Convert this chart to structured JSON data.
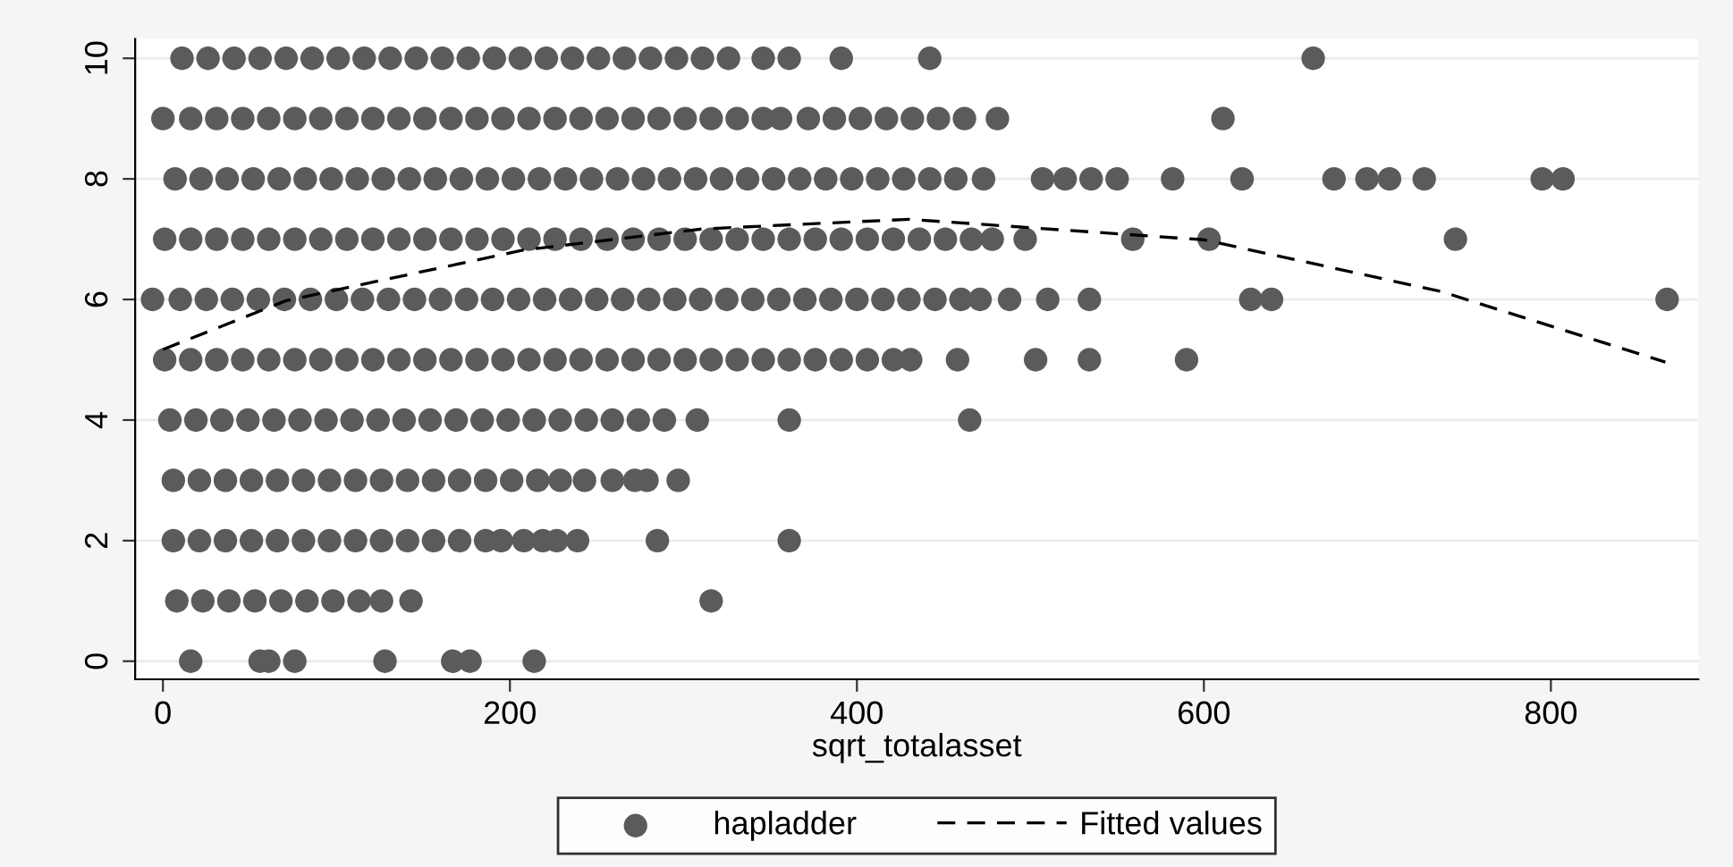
{
  "chart_data": {
    "type": "scatter",
    "xlabel": "sqrt_totalasset",
    "xlim": [
      -16,
      885
    ],
    "ylim": [
      -0.3,
      10.32
    ],
    "xticks": [
      0,
      200,
      400,
      600,
      800
    ],
    "yticks": [
      0,
      2,
      4,
      6,
      8,
      10
    ],
    "grid": "y",
    "legend": "bottom",
    "series": [
      {
        "name": "hapladder",
        "marker": "circle",
        "color": "#5b5b5b",
        "x": [
          11,
          26,
          41,
          56,
          71,
          86,
          101,
          116,
          131,
          146,
          161,
          176,
          191,
          206,
          221,
          236,
          251,
          266,
          281,
          296,
          311,
          326,
          346,
          361,
          391,
          442,
          663,
          0,
          16,
          31,
          46,
          61,
          76,
          91,
          106,
          121,
          136,
          151,
          166,
          181,
          196,
          211,
          226,
          241,
          256,
          271,
          286,
          301,
          316,
          331,
          346,
          356,
          372,
          387,
          402,
          417,
          432,
          447,
          462,
          481,
          611,
          7,
          22,
          37,
          52,
          67,
          82,
          97,
          112,
          127,
          142,
          157,
          172,
          187,
          202,
          217,
          232,
          247,
          262,
          277,
          292,
          307,
          322,
          337,
          352,
          367,
          382,
          397,
          412,
          427,
          442,
          457,
          473,
          507,
          520,
          535,
          550,
          582,
          622,
          675,
          694,
          707,
          727,
          795,
          807,
          1,
          16,
          31,
          46,
          61,
          76,
          91,
          106,
          121,
          136,
          151,
          166,
          181,
          196,
          211,
          226,
          241,
          256,
          271,
          286,
          301,
          316,
          331,
          346,
          361,
          376,
          391,
          406,
          421,
          436,
          451,
          466,
          478,
          497,
          559,
          603,
          745,
          -6,
          10,
          25,
          40,
          55,
          70,
          85,
          100,
          115,
          130,
          145,
          160,
          175,
          190,
          205,
          220,
          235,
          250,
          265,
          280,
          295,
          310,
          325,
          340,
          355,
          370,
          385,
          400,
          415,
          430,
          445,
          460,
          471,
          488,
          510,
          534,
          627,
          639,
          867,
          1,
          16,
          31,
          46,
          61,
          76,
          91,
          106,
          121,
          136,
          151,
          166,
          181,
          196,
          211,
          226,
          241,
          256,
          271,
          286,
          301,
          316,
          331,
          346,
          361,
          376,
          391,
          406,
          421,
          431,
          458,
          503,
          534,
          590,
          4,
          19,
          34,
          49,
          64,
          79,
          94,
          109,
          124,
          139,
          154,
          169,
          184,
          199,
          214,
          229,
          244,
          259,
          274,
          289,
          308,
          361,
          465,
          6,
          21,
          36,
          51,
          66,
          81,
          96,
          111,
          126,
          141,
          156,
          171,
          186,
          201,
          216,
          229,
          243,
          259,
          272,
          279,
          297,
          6,
          21,
          36,
          51,
          66,
          81,
          96,
          111,
          126,
          141,
          156,
          171,
          186,
          195,
          208,
          219,
          227,
          239,
          285,
          361,
          8,
          23,
          38,
          53,
          68,
          83,
          98,
          113,
          126,
          143,
          316,
          16,
          56,
          61,
          76,
          128,
          167,
          177,
          214
        ],
        "values": [
          10,
          10,
          10,
          10,
          10,
          10,
          10,
          10,
          10,
          10,
          10,
          10,
          10,
          10,
          10,
          10,
          10,
          10,
          10,
          10,
          10,
          10,
          10,
          10,
          10,
          10,
          10,
          9,
          9,
          9,
          9,
          9,
          9,
          9,
          9,
          9,
          9,
          9,
          9,
          9,
          9,
          9,
          9,
          9,
          9,
          9,
          9,
          9,
          9,
          9,
          9,
          9,
          9,
          9,
          9,
          9,
          9,
          9,
          9,
          9,
          9,
          8,
          8,
          8,
          8,
          8,
          8,
          8,
          8,
          8,
          8,
          8,
          8,
          8,
          8,
          8,
          8,
          8,
          8,
          8,
          8,
          8,
          8,
          8,
          8,
          8,
          8,
          8,
          8,
          8,
          8,
          8,
          8,
          8,
          8,
          8,
          8,
          8,
          8,
          8,
          8,
          8,
          8,
          8,
          8,
          7,
          7,
          7,
          7,
          7,
          7,
          7,
          7,
          7,
          7,
          7,
          7,
          7,
          7,
          7,
          7,
          7,
          7,
          7,
          7,
          7,
          7,
          7,
          7,
          7,
          7,
          7,
          7,
          7,
          7,
          7,
          7,
          7,
          7,
          7,
          7,
          7,
          6,
          6,
          6,
          6,
          6,
          6,
          6,
          6,
          6,
          6,
          6,
          6,
          6,
          6,
          6,
          6,
          6,
          6,
          6,
          6,
          6,
          6,
          6,
          6,
          6,
          6,
          6,
          6,
          6,
          6,
          6,
          6,
          6,
          6,
          6,
          6,
          6,
          6,
          6,
          5,
          5,
          5,
          5,
          5,
          5,
          5,
          5,
          5,
          5,
          5,
          5,
          5,
          5,
          5,
          5,
          5,
          5,
          5,
          5,
          5,
          5,
          5,
          5,
          5,
          5,
          5,
          5,
          5,
          5,
          5,
          5,
          5,
          5,
          4,
          4,
          4,
          4,
          4,
          4,
          4,
          4,
          4,
          4,
          4,
          4,
          4,
          4,
          4,
          4,
          4,
          4,
          4,
          4,
          4,
          4,
          4,
          3,
          3,
          3,
          3,
          3,
          3,
          3,
          3,
          3,
          3,
          3,
          3,
          3,
          3,
          3,
          3,
          3,
          3,
          3,
          3,
          3,
          2,
          2,
          2,
          2,
          2,
          2,
          2,
          2,
          2,
          2,
          2,
          2,
          2,
          2,
          2,
          2,
          2,
          2,
          2,
          2,
          1,
          1,
          1,
          1,
          1,
          1,
          1,
          1,
          1,
          1,
          1,
          0,
          0,
          0,
          0,
          0,
          0,
          0,
          0
        ]
      },
      {
        "name": "Fitted values",
        "type": "line",
        "line_style": "dashed",
        "marker": "none",
        "color": "#000000",
        "x": [
          0,
          71,
          208,
          311,
          430,
          600,
          737,
          866
        ],
        "values": [
          5.17,
          5.98,
          6.82,
          7.17,
          7.33,
          6.99,
          6.13,
          4.96
        ]
      }
    ]
  }
}
